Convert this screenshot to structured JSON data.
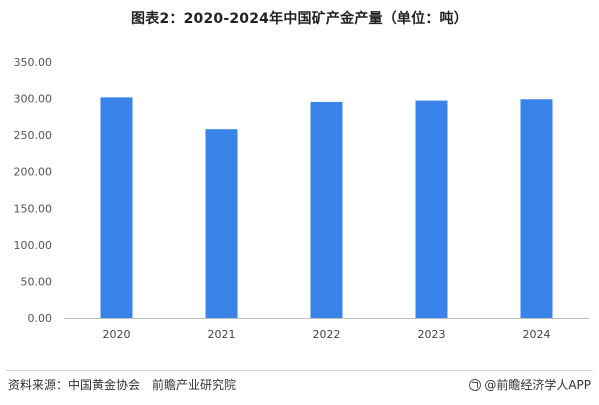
{
  "chart_data": {
    "type": "bar",
    "title": "图表2：2020-2024年中国矿产金产量（单位：吨）",
    "categories": [
      "2020",
      "2021",
      "2022",
      "2023",
      "2024"
    ],
    "values": [
      301.69,
      258.11,
      295.42,
      297.26,
      299.09
    ],
    "ylim": [
      0,
      350
    ],
    "yticks": [
      "0.00",
      "50.00",
      "100.00",
      "150.00",
      "200.00",
      "250.00",
      "300.00",
      "350.00"
    ],
    "grid": false,
    "bar_color": "#3a83e8",
    "axis_color": "#bfbfbf"
  },
  "footer": {
    "source": "资料来源：中国黄金协会　前瞻产业研究院",
    "brand": "@前瞻经济学人APP",
    "brand_icon": "qianzhan-logo-icon"
  }
}
